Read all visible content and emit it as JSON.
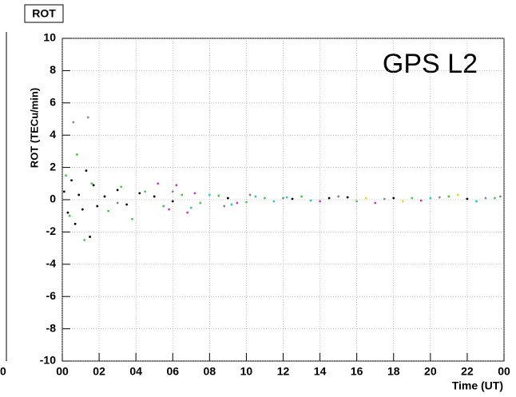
{
  "chart_data": {
    "type": "scatter",
    "title": "ROT",
    "ylabel": "ROT (TECu/min)",
    "xlabel": "Time (UT)",
    "annotation": "GPS L2",
    "xlim": [
      0,
      24
    ],
    "ylim": [
      -10,
      10
    ],
    "xticks": [
      {
        "value": 0,
        "label": "00"
      },
      {
        "value": 2,
        "label": "02"
      },
      {
        "value": 4,
        "label": "04"
      },
      {
        "value": 6,
        "label": "06"
      },
      {
        "value": 8,
        "label": "08"
      },
      10,
      12,
      14,
      16,
      18,
      20,
      22,
      {
        "value": 24,
        "label": "00"
      }
    ],
    "yticks": [
      -10,
      -8,
      -6,
      -4,
      -2,
      0,
      2,
      4,
      6,
      8,
      10
    ],
    "grid": true,
    "series": [
      {
        "color": "#000000",
        "x": [
          0.1,
          0.3,
          0.5,
          0.7,
          0.9,
          1.1,
          1.3,
          1.5,
          1.7,
          1.9,
          2.3,
          3,
          3.5,
          4.2,
          5,
          6,
          9,
          12.5,
          14.5,
          15.5,
          18,
          22
        ],
        "values": [
          0.5,
          -0.8,
          1.2,
          -1.5,
          0.3,
          -0.6,
          1.8,
          -2.3,
          0.9,
          -0.4,
          0.2,
          0.6,
          -0.3,
          0.4,
          0.2,
          -0.1,
          0.1,
          0.05,
          0.1,
          0.15,
          0.1,
          0.05
        ]
      },
      {
        "color": "#44cc44",
        "x": [
          0.2,
          0.4,
          0.8,
          1.2,
          1.6,
          2.5,
          3.2,
          3.8,
          4.5,
          5.5,
          6.5,
          7.5,
          8.5,
          10,
          11,
          13,
          16,
          19,
          21,
          23.5
        ],
        "values": [
          1.5,
          -1.0,
          2.8,
          -2.5,
          1.0,
          -0.7,
          0.8,
          -1.2,
          0.5,
          -0.4,
          0.3,
          -0.2,
          0.25,
          -0.15,
          0.1,
          0.2,
          -0.1,
          0.1,
          0.2,
          0.1
        ]
      },
      {
        "color": "#cc33cc",
        "x": [
          5.2,
          5.8,
          6.2,
          6.8,
          7.2,
          9.5,
          14,
          17,
          19.5
        ],
        "values": [
          1.0,
          -0.6,
          0.9,
          -0.8,
          0.4,
          -0.2,
          -0.1,
          -0.2,
          -0.05
        ]
      },
      {
        "color": "#22cccc",
        "x": [
          7,
          8,
          9.2,
          10.5,
          11.5,
          12.2,
          13.5,
          20,
          22.5
        ],
        "values": [
          -0.5,
          0.3,
          -0.3,
          0.2,
          -0.1,
          0.15,
          -0.05,
          0.1,
          -0.1
        ]
      },
      {
        "color": "#888888",
        "x": [
          0.6,
          1.4,
          3,
          6,
          8.8,
          10.2,
          12,
          15,
          17.5,
          20.5,
          23,
          23.8
        ],
        "values": [
          4.8,
          5.1,
          -0.2,
          0.5,
          -0.4,
          0.3,
          0.1,
          0.2,
          0.05,
          0.15,
          0.1,
          0.2
        ]
      },
      {
        "color": "#dddd22",
        "x": [
          16.5,
          18.5,
          21.5
        ],
        "values": [
          0.1,
          -0.1,
          0.3
        ]
      }
    ]
  },
  "left_panel": {
    "tick_label": "0"
  }
}
